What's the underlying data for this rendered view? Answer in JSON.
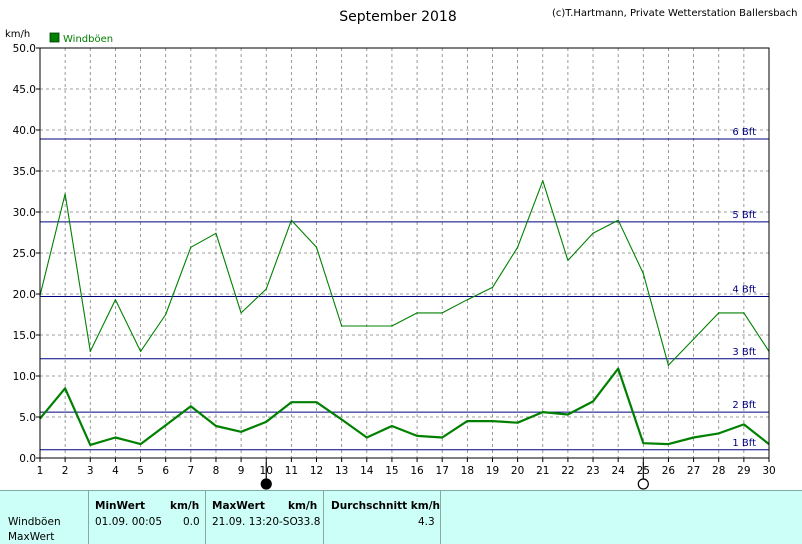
{
  "header": {
    "title": "September 2018",
    "credit": "(c)T.Hartmann, Private Wetterstation Ballersbach",
    "unit": "km/h"
  },
  "chart_data": {
    "type": "line",
    "ylim": [
      0,
      50
    ],
    "y_ticks": [
      "0.0",
      "5.0",
      "10.0",
      "15.0",
      "20.0",
      "25.0",
      "30.0",
      "35.0",
      "40.0",
      "45.0",
      "50.0"
    ],
    "x": [
      1,
      2,
      3,
      4,
      5,
      6,
      7,
      8,
      9,
      10,
      11,
      12,
      13,
      14,
      15,
      16,
      17,
      18,
      19,
      20,
      21,
      22,
      23,
      24,
      25,
      26,
      27,
      28,
      29,
      30
    ],
    "legend": [
      {
        "label": "Windböen",
        "color": "#008000"
      }
    ],
    "grid": true,
    "series": [
      {
        "name": "Windböen",
        "role": "max",
        "color": "#008000",
        "values": [
          19.8,
          32.2,
          13.0,
          19.3,
          13.0,
          17.5,
          25.7,
          27.4,
          17.7,
          20.6,
          29.0,
          25.7,
          16.1,
          16.1,
          16.1,
          17.7,
          17.7,
          19.3,
          20.8,
          25.7,
          33.8,
          24.1,
          27.4,
          29.0,
          22.5,
          11.3,
          14.5,
          17.7,
          17.7,
          13.0
        ]
      },
      {
        "name": "Windböen",
        "role": "avg",
        "color": "#008000",
        "values": [
          4.8,
          8.5,
          1.6,
          2.5,
          1.7,
          4.0,
          6.3,
          3.9,
          3.2,
          4.4,
          6.8,
          6.8,
          4.7,
          2.5,
          3.9,
          2.7,
          2.5,
          4.5,
          4.5,
          4.3,
          5.6,
          5.3,
          6.9,
          10.9,
          1.8,
          1.7,
          2.5,
          3.0,
          4.1,
          1.7
        ]
      }
    ],
    "beaufort_lines": [
      {
        "label": "1 Bft",
        "value": 1.0
      },
      {
        "label": "2 Bft",
        "value": 5.6
      },
      {
        "label": "3 Bft",
        "value": 12.1
      },
      {
        "label": "4 Bft",
        "value": 19.7
      },
      {
        "label": "5 Bft",
        "value": 28.8
      },
      {
        "label": "6 Bft",
        "value": 38.9
      }
    ],
    "moon_markers": [
      {
        "day": 10,
        "phase": "new-moon"
      },
      {
        "day": 25,
        "phase": "full-moon"
      }
    ]
  },
  "stats": {
    "row_labels": [
      "Windböen",
      "MaxWert"
    ],
    "min": {
      "header": "MinWert",
      "unit": "km/h",
      "time": "01.09.  00:05",
      "value": "0.0"
    },
    "max": {
      "header": "MaxWert",
      "unit": "km/h",
      "time": "21.09.  13:20-SO",
      "value": "33.8"
    },
    "avg": {
      "header": "Durchschnitt km/h",
      "value": "4.3"
    }
  }
}
